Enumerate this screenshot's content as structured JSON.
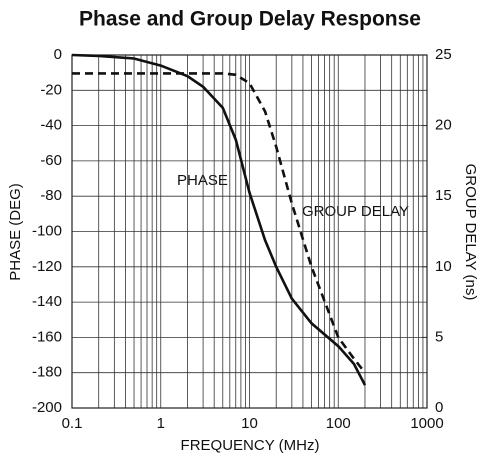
{
  "chart_data": {
    "type": "line",
    "title": "Phase and Group Delay Response",
    "x_label": "FREQUENCY (MHz)",
    "y_label": "PHASE (DEG)",
    "y2_label": "GROUP DELAY (ns)",
    "annotations": [
      "PHASE",
      "GROUP DELAY"
    ],
    "x_log": true,
    "xlim": [
      0.1,
      1000
    ],
    "xticks": [
      0.1,
      1,
      10,
      100,
      1000
    ],
    "ylim": [
      -200,
      0
    ],
    "yticks": [
      -200,
      -180,
      -160,
      -140,
      -120,
      -100,
      -80,
      -60,
      -40,
      -20,
      0
    ],
    "y2lim": [
      0,
      25
    ],
    "y2ticks": [
      0,
      5,
      10,
      15,
      20,
      25
    ],
    "grid": true,
    "series": [
      {
        "name": "PHASE",
        "color": "#111111",
        "line_style": "solid",
        "x": [
          0.1,
          0.2,
          0.5,
          1,
          2,
          3,
          5,
          7,
          10,
          15,
          20,
          30,
          50,
          100,
          150,
          200
        ],
        "values": [
          0,
          -0.5,
          -2,
          -6,
          -12,
          -18,
          -30,
          -48,
          -78,
          -105,
          -120,
          -138,
          -152,
          -165,
          -175,
          -187
        ]
      },
      {
        "name": "GROUP DELAY",
        "color": "#111111",
        "line_style": "dashed",
        "axis": "y2",
        "x": [
          0.1,
          1,
          5,
          7,
          10,
          15,
          20,
          30,
          50,
          100,
          150,
          200
        ],
        "values": [
          23.7,
          23.7,
          23.7,
          23.6,
          23,
          21,
          18.5,
          14.5,
          10,
          5,
          3.5,
          2.5
        ]
      }
    ]
  }
}
